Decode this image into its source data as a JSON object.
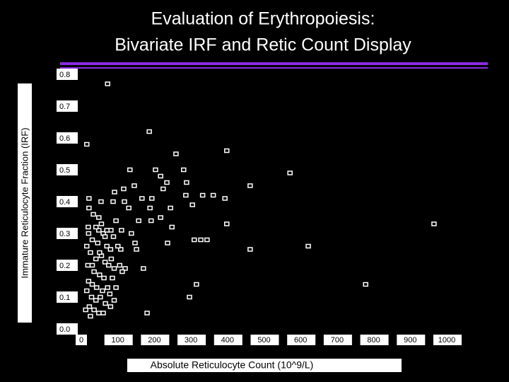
{
  "chart_data": {
    "type": "scatter",
    "title": [
      "Evaluation of Erythropoiesis:",
      "Bivariate IRF and Retic Count Display"
    ],
    "x_label": "Absolute Reticulocyte Count (10^9/L)",
    "y_label": "Immature Reticulocyte Fraction (IRF)",
    "x": [
      72,
      186,
      15,
      259,
      398,
      133,
      203,
      280,
      571,
      217,
      234,
      288,
      462,
      224,
      91,
      116,
      145,
      286,
      332,
      361,
      21,
      54,
      87,
      118,
      166,
      193,
      393,
      21,
      130,
      188,
      244,
      304,
      95,
      157,
      191,
      217,
      248,
      398,
      965,
      19,
      48,
      81,
      110,
      137,
      309,
      327,
      344,
      236,
      462,
      621,
      147,
      151,
      108,
      170,
      120,
      315,
      778,
      296,
      180,
      20,
      30,
      45,
      60,
      70,
      80,
      25,
      40,
      55,
      65,
      75,
      90,
      18,
      35,
      50,
      62,
      85,
      20,
      30,
      42,
      58,
      72,
      95,
      15,
      28,
      40,
      52,
      66,
      80,
      22,
      35,
      48,
      60,
      12,
      25,
      70,
      55,
      40,
      88,
      100,
      105,
      33,
      48,
      15,
      112,
      78,
      90,
      65,
      30,
      50,
      82
    ],
    "values": [
      0.77,
      0.62,
      0.58,
      0.55,
      0.56,
      0.5,
      0.5,
      0.5,
      0.49,
      0.48,
      0.46,
      0.46,
      0.45,
      0.44,
      0.43,
      0.44,
      0.45,
      0.42,
      0.42,
      0.42,
      0.41,
      0.4,
      0.4,
      0.4,
      0.41,
      0.41,
      0.41,
      0.38,
      0.38,
      0.38,
      0.38,
      0.39,
      0.34,
      0.34,
      0.34,
      0.35,
      0.32,
      0.33,
      0.33,
      0.32,
      0.31,
      0.31,
      0.31,
      0.3,
      0.28,
      0.28,
      0.28,
      0.27,
      0.25,
      0.26,
      0.27,
      0.25,
      0.25,
      0.19,
      0.19,
      0.14,
      0.14,
      0.1,
      0.05,
      0.3,
      0.28,
      0.27,
      0.3,
      0.26,
      0.25,
      0.24,
      0.22,
      0.23,
      0.21,
      0.2,
      0.19,
      0.2,
      0.18,
      0.17,
      0.16,
      0.16,
      0.15,
      0.14,
      0.13,
      0.12,
      0.13,
      0.13,
      0.12,
      0.1,
      0.09,
      0.1,
      0.08,
      0.07,
      0.07,
      0.06,
      0.05,
      0.05,
      0.06,
      0.04,
      0.31,
      0.33,
      0.32,
      0.29,
      0.26,
      0.2,
      0.36,
      0.35,
      0.26,
      0.18,
      0.11,
      0.09,
      0.29,
      0.2,
      0.24,
      0.22
    ],
    "color": "#ffffff",
    "xlim": [
      0,
      1000
    ],
    "xticks": [
      0,
      100,
      200,
      300,
      400,
      500,
      600,
      700,
      800,
      900,
      1000
    ],
    "ylim": [
      0,
      0.8
    ],
    "yticks": [
      {
        "value": 0,
        "label": "0.0"
      },
      0.1,
      0.2,
      0.3,
      0.4,
      0.5,
      0.6,
      0.7,
      0.8
    ]
  }
}
